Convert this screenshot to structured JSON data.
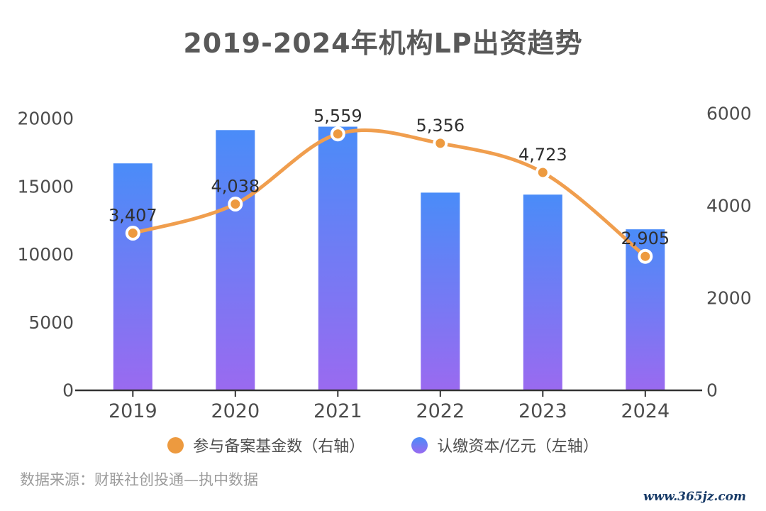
{
  "page": {
    "title": "2019-2024年机构LP出资趋势"
  },
  "chart_data": {
    "type": "bar",
    "title": "2019-2024年机构LP出资趋势",
    "categories": [
      "2019",
      "2020",
      "2021",
      "2022",
      "2023",
      "2024"
    ],
    "series": [
      {
        "name": "认缴资本/亿元（左轴）",
        "type": "bar",
        "axis": "left",
        "values": [
          16700,
          19150,
          19400,
          14550,
          14400,
          11850
        ]
      },
      {
        "name": "参与备案基金数（右轴）",
        "type": "line",
        "axis": "right",
        "values": [
          3407,
          4038,
          5559,
          5356,
          4723,
          2905
        ],
        "data_labels": [
          "3,407",
          "4,038",
          "5,559",
          "5,356",
          "4,723",
          "2,905"
        ]
      }
    ],
    "left_axis": {
      "range": [
        0,
        20000
      ],
      "ticks": [
        0,
        5000,
        10000,
        15000,
        20000
      ]
    },
    "right_axis": {
      "range": [
        0,
        6000
      ],
      "ticks": [
        0,
        2000,
        4000,
        6000
      ]
    },
    "grid": false,
    "legend_position": "bottom"
  },
  "legend": {
    "items": [
      {
        "label": "参与备案基金数（右轴）",
        "series": "line"
      },
      {
        "label": "认缴资本/亿元（左轴）",
        "series": "bar"
      }
    ]
  },
  "footer": {
    "source": "数据来源：财联社创投通—执中数据",
    "watermark": "www.365jz.com"
  },
  "colors": {
    "bar_top": "#4a8cf8",
    "bar_bottom": "#9a6af0",
    "line": "#f09e4e",
    "point_fill": "#ed9a3f",
    "point_ring": "#ffffff",
    "axis": "#333333",
    "title_text": "#595959",
    "tick_text": "#4d4d4d",
    "data_label_text": "#2f2f2f",
    "legend_text": "#4c4c4c",
    "source_text": "#9b9b9b",
    "watermark_text": "#173a67"
  }
}
